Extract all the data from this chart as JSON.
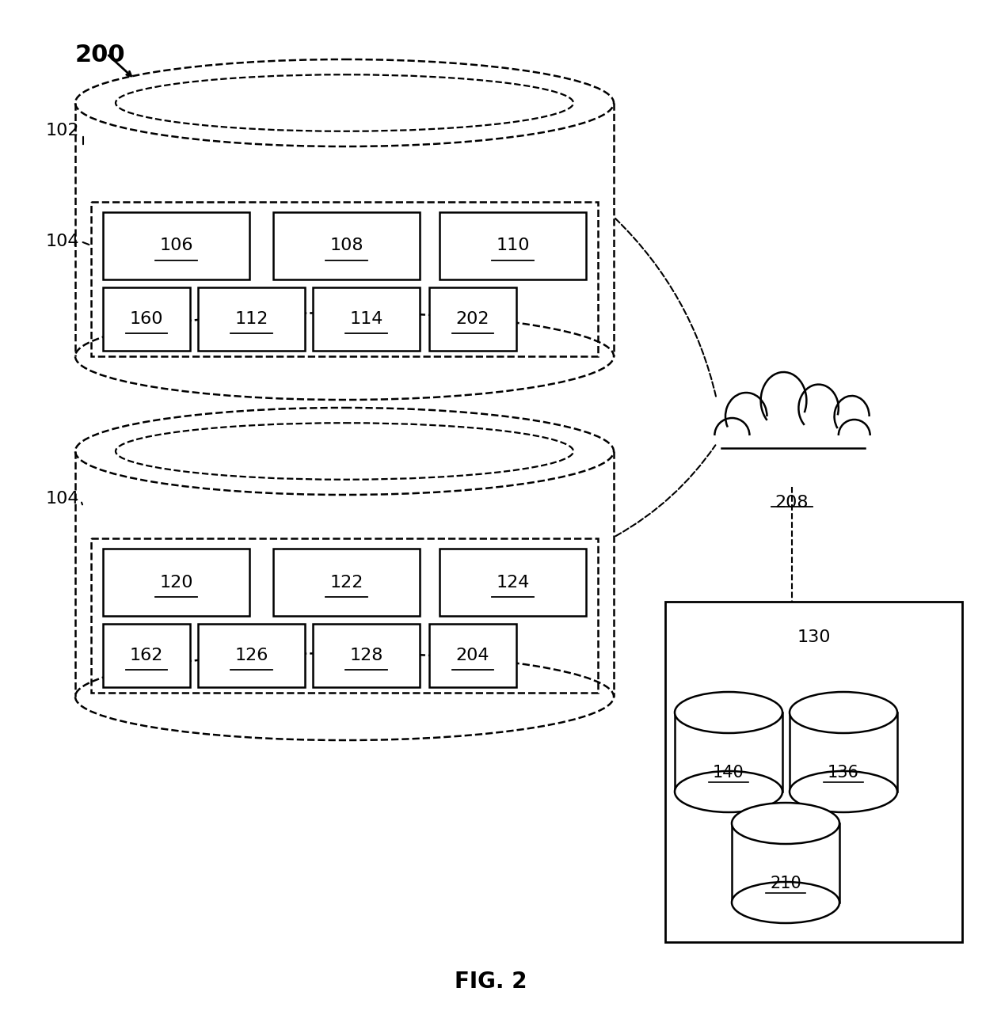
{
  "bg_color": "#ffffff",
  "line_color": "#000000",
  "fig_caption": "FIG. 2"
}
